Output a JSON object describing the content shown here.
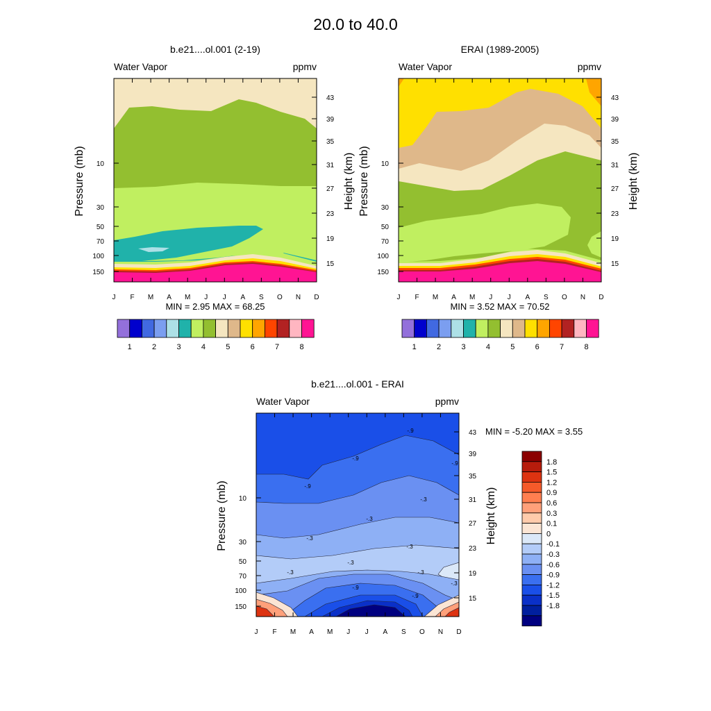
{
  "figure_title": "20.0 to  40.0",
  "months": [
    "J",
    "F",
    "M",
    "A",
    "M",
    "J",
    "J",
    "A",
    "S",
    "O",
    "N",
    "D"
  ],
  "pressure_ticks": [
    "10",
    "30",
    "50",
    "70",
    "100",
    "150"
  ],
  "height_ticks": [
    "43",
    "39",
    "35",
    "31",
    "27",
    "23",
    "19",
    "15"
  ],
  "shared_labels": {
    "variable": "Water Vapor",
    "units": "ppmv",
    "ylabel_left": "Pressure (mb)",
    "ylabel_right": "Height (km)"
  },
  "colorbar_main": {
    "colors": [
      "#9370db",
      "#0000cd",
      "#4169e1",
      "#7b9ef0",
      "#ade0e6",
      "#20b2aa",
      "#c0ef60",
      "#93bf30",
      "#f5e6c0",
      "#dfb88a",
      "#ffe000",
      "#ffa500",
      "#ff4500",
      "#b22222",
      "#ffb6c1",
      "#ff1493"
    ],
    "labels": [
      "1",
      "2",
      "3",
      "4",
      "5",
      "6",
      "7",
      "8"
    ]
  },
  "colorbar_diff": {
    "colors": [
      "#8b0000",
      "#b71c0c",
      "#dd3311",
      "#f55a2a",
      "#ff7f50",
      "#ffa07a",
      "#ffcbab",
      "#fbe5d4",
      "#dbe8f8",
      "#b3ccf8",
      "#8eb0f5",
      "#6a90f2",
      "#3a6ff0",
      "#1a4fe8",
      "#0a30c8",
      "#001f9e",
      "#000080"
    ],
    "labels": [
      "1.8",
      "1.5",
      "1.2",
      "0.9",
      "0.6",
      "0.3",
      "0.1",
      "0",
      "-0.1",
      "-0.3",
      "-0.6",
      "-0.9",
      "-1.2",
      "-1.5",
      "-1.8"
    ]
  },
  "chart_data": [
    {
      "type": "heatmap",
      "title": "b.e21....ol.001 (2-19)",
      "subtitle_left": "Water Vapor",
      "subtitle_right": "ppmv",
      "xlabel": "",
      "ylabel": "Pressure (mb)",
      "ylabel_right": "Height (km)",
      "stats_text": "MIN =   2.95  MAX =  68.25",
      "min": 2.95,
      "max": 68.25
    },
    {
      "type": "heatmap",
      "title": "ERAI (1989-2005)",
      "subtitle_left": "Water Vapor",
      "subtitle_right": "ppmv",
      "xlabel": "",
      "ylabel": "Pressure (mb)",
      "ylabel_right": "Height (km)",
      "stats_text": "MIN =   3.52  MAX =  70.52",
      "min": 3.52,
      "max": 70.52
    },
    {
      "type": "heatmap",
      "title": "b.e21....ol.001 - ERAI",
      "subtitle_left": "Water Vapor",
      "subtitle_right": "ppmv",
      "xlabel": "",
      "ylabel": "Pressure (mb)",
      "ylabel_right": "Height (km)",
      "stats_text": "MIN =  -5.20  MAX =   3.55",
      "min": -5.2,
      "max": 3.55,
      "contour_labels": [
        "-.9",
        "-.9",
        "-.9",
        "-.9",
        "-.3",
        "-.3",
        "-.3",
        "-.3",
        "-.3",
        "-.3",
        "-.3",
        "-.9",
        "-.9",
        "-.3"
      ]
    }
  ]
}
